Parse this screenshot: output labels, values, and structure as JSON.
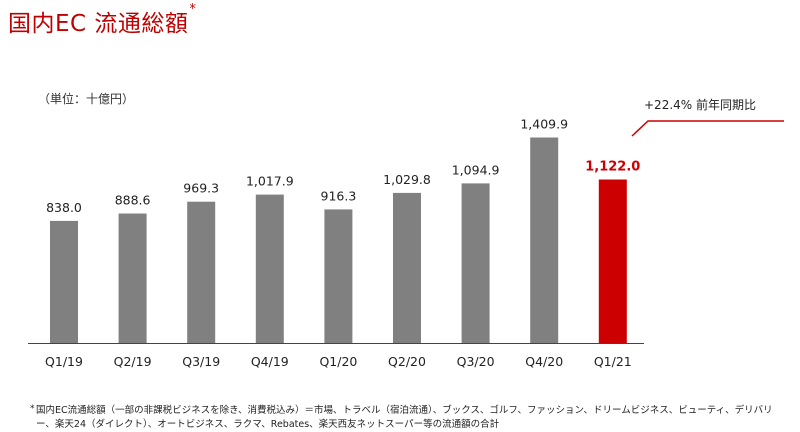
{
  "title": {
    "text": "国内EC 流通総額",
    "marker": "*"
  },
  "unit_label": "（単位：十億円）",
  "growth_note": "+22.4% 前年同期比",
  "footnote": {
    "marker": "*",
    "text": "国内EC流通総額（一部の非課税ビジネスを除き、消費税込み）＝市場、トラベル（宿泊流通）、ブックス、ゴルフ、ファッション、ドリームビジネス、ビューティ、デリバリー、楽天24（ダイレクト）、オートビジネス、ラクマ、Rebates、楽天西友ネットスーパー等の流通額の合計"
  },
  "colors": {
    "bar": "#808080",
    "highlight": "#cc0000",
    "title": "#c00000",
    "axis": "#444444"
  },
  "chart_data": {
    "type": "bar",
    "categories": [
      "Q1/19",
      "Q2/19",
      "Q3/19",
      "Q4/19",
      "Q1/20",
      "Q2/20",
      "Q3/20",
      "Q4/20",
      "Q1/21"
    ],
    "values": [
      838.0,
      888.6,
      969.3,
      1017.9,
      916.3,
      1029.8,
      1094.9,
      1409.9,
      1122.0
    ],
    "value_labels": [
      "838.0",
      "888.6",
      "969.3",
      "1,017.9",
      "916.3",
      "1,029.8",
      "1,094.9",
      "1,409.9",
      "1,122.0"
    ],
    "highlight_index": 8,
    "ylabel": "（単位：十億円）",
    "ylim": [
      0,
      1530
    ],
    "grid": false,
    "legend": "none"
  }
}
